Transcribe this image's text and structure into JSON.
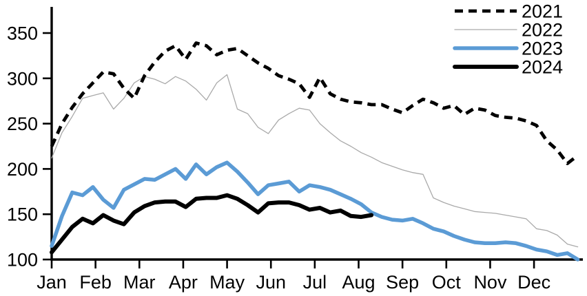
{
  "chart": {
    "background": "#ffffff",
    "axis_color": "#000000",
    "text_color": "#000000",
    "legend_position": "top-right",
    "grid": false
  },
  "chart_data": {
    "type": "line",
    "title": "",
    "xlabel": "",
    "ylabel": "",
    "x_cadence": "weekly",
    "x_tick_labels": [
      "Jan",
      "Feb",
      "Mar",
      "Apr",
      "May",
      "Jun",
      "Jul",
      "Aug",
      "Sep",
      "Oct",
      "Nov",
      "Dec"
    ],
    "y_ticks": [
      100,
      150,
      200,
      250,
      300,
      350
    ],
    "ylim": [
      100,
      379
    ],
    "legend": [
      "2021",
      "2022",
      "2023",
      "2024"
    ],
    "series": [
      {
        "name": "2021",
        "color": "#000000",
        "line_style": "dashed",
        "stroke_width": 4.8,
        "values": [
          225,
          250,
          268,
          283,
          295,
          307,
          305,
          289,
          278,
          303,
          318,
          330,
          336,
          321,
          339,
          336,
          326,
          331,
          333,
          325,
          317,
          311,
          303,
          299,
          294,
          279,
          301,
          283,
          277,
          274,
          273,
          271,
          271,
          266,
          262,
          270,
          277,
          273,
          267,
          270,
          260,
          267,
          265,
          259,
          257,
          256,
          253,
          248,
          231,
          221,
          206,
          215
        ]
      },
      {
        "name": "2022",
        "color": "#a9a9a9",
        "line_style": "solid-thin",
        "stroke_width": 1.3,
        "values": [
          212,
          240,
          258,
          278,
          281,
          284,
          266,
          278,
          295,
          302,
          299,
          294,
          302,
          297,
          288,
          276,
          295,
          304,
          266,
          261,
          246,
          239,
          254,
          261,
          267,
          265,
          250,
          240,
          231,
          225,
          218,
          213,
          207,
          203,
          199,
          196,
          194,
          168,
          163,
          159,
          156,
          153,
          152,
          151,
          149,
          147,
          145,
          134,
          132,
          127,
          117,
          114
        ]
      },
      {
        "name": "2023",
        "color": "#5b9bd5",
        "line_style": "solid-thick",
        "stroke_width": 5.5,
        "values": [
          115,
          148,
          174,
          171,
          180,
          166,
          157,
          177,
          183,
          189,
          188,
          194,
          200,
          189,
          205,
          194,
          202,
          207,
          197,
          185,
          172,
          182,
          184,
          186,
          175,
          182,
          180,
          177,
          172,
          167,
          161,
          152,
          147,
          144,
          143,
          145,
          140,
          134,
          131,
          126,
          122,
          119,
          118,
          118,
          119,
          118,
          115,
          111,
          109,
          105,
          107,
          100
        ]
      },
      {
        "name": "2024",
        "color": "#000000",
        "line_style": "solid-thick",
        "stroke_width": 6,
        "values": [
          108,
          122,
          136,
          145,
          140,
          149,
          143,
          139,
          152,
          159,
          163,
          164,
          164,
          158,
          167,
          168,
          168,
          171,
          167,
          160,
          152,
          162,
          163,
          163,
          160,
          155,
          157,
          152,
          154,
          148,
          147,
          149
        ]
      }
    ]
  }
}
